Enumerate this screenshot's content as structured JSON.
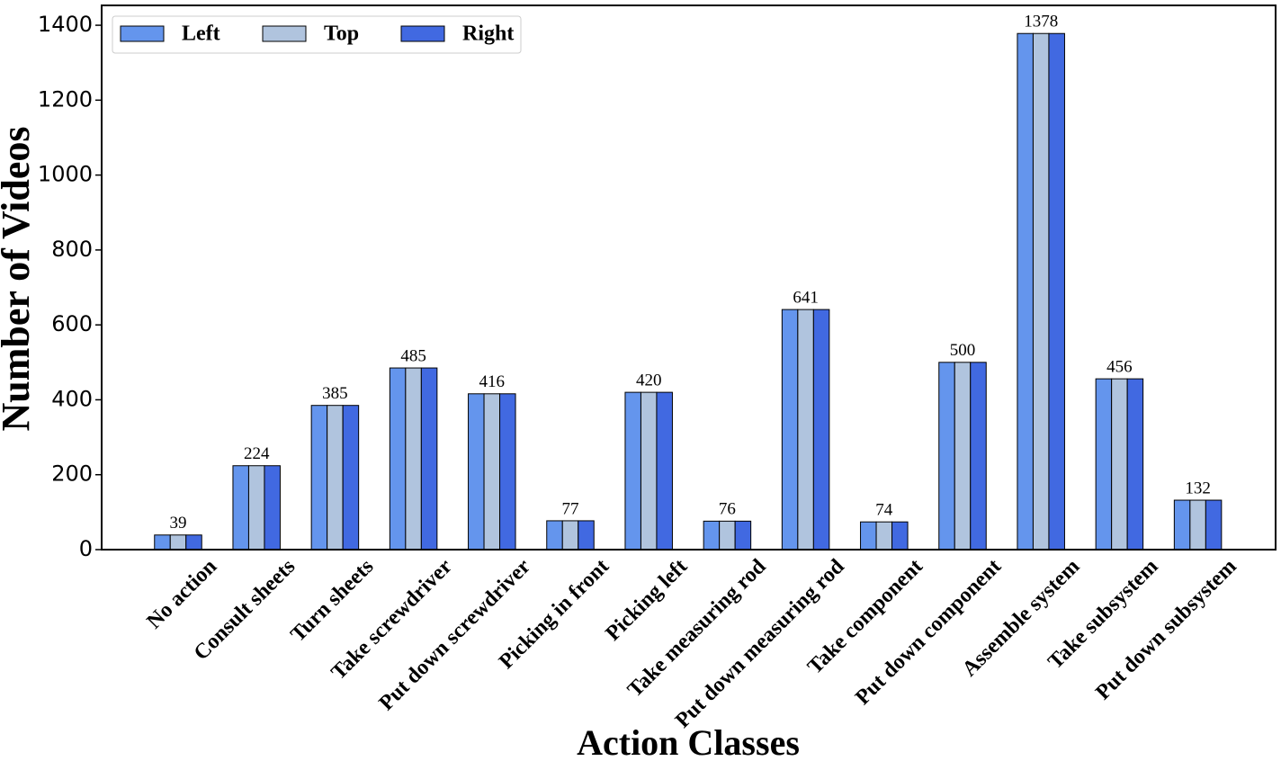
{
  "chart_data": {
    "type": "bar",
    "x_label": "Action Classes",
    "y_label": "Number of Videos",
    "categories": [
      "No action",
      "Consult sheets",
      "Turn sheets",
      "Take screwdriver",
      "Put down screwdriver",
      "Picking in front",
      "Picking left",
      "Take measuring rod",
      "Put down measuring rod",
      "Take component",
      "Put down component",
      "Assemble system",
      "Take subsystem",
      "Put down subsystem"
    ],
    "series": [
      {
        "name": "Left",
        "color": "#6495ed",
        "values": [
          39,
          224,
          385,
          485,
          416,
          77,
          420,
          76,
          641,
          74,
          500,
          1378,
          456,
          132
        ]
      },
      {
        "name": "Top",
        "color": "#b0c4de",
        "values": [
          39,
          224,
          385,
          485,
          416,
          77,
          420,
          76,
          641,
          74,
          500,
          1378,
          456,
          132
        ]
      },
      {
        "name": "Right",
        "color": "#4169e1",
        "values": [
          39,
          224,
          385,
          485,
          416,
          77,
          420,
          76,
          641,
          74,
          500,
          1378,
          456,
          132
        ]
      }
    ],
    "ylim": [
      0,
      1453
    ],
    "yticks": [
      0,
      200,
      400,
      600,
      800,
      1000,
      1200,
      1400
    ],
    "legend": "upper left",
    "show_value_labels": true
  }
}
